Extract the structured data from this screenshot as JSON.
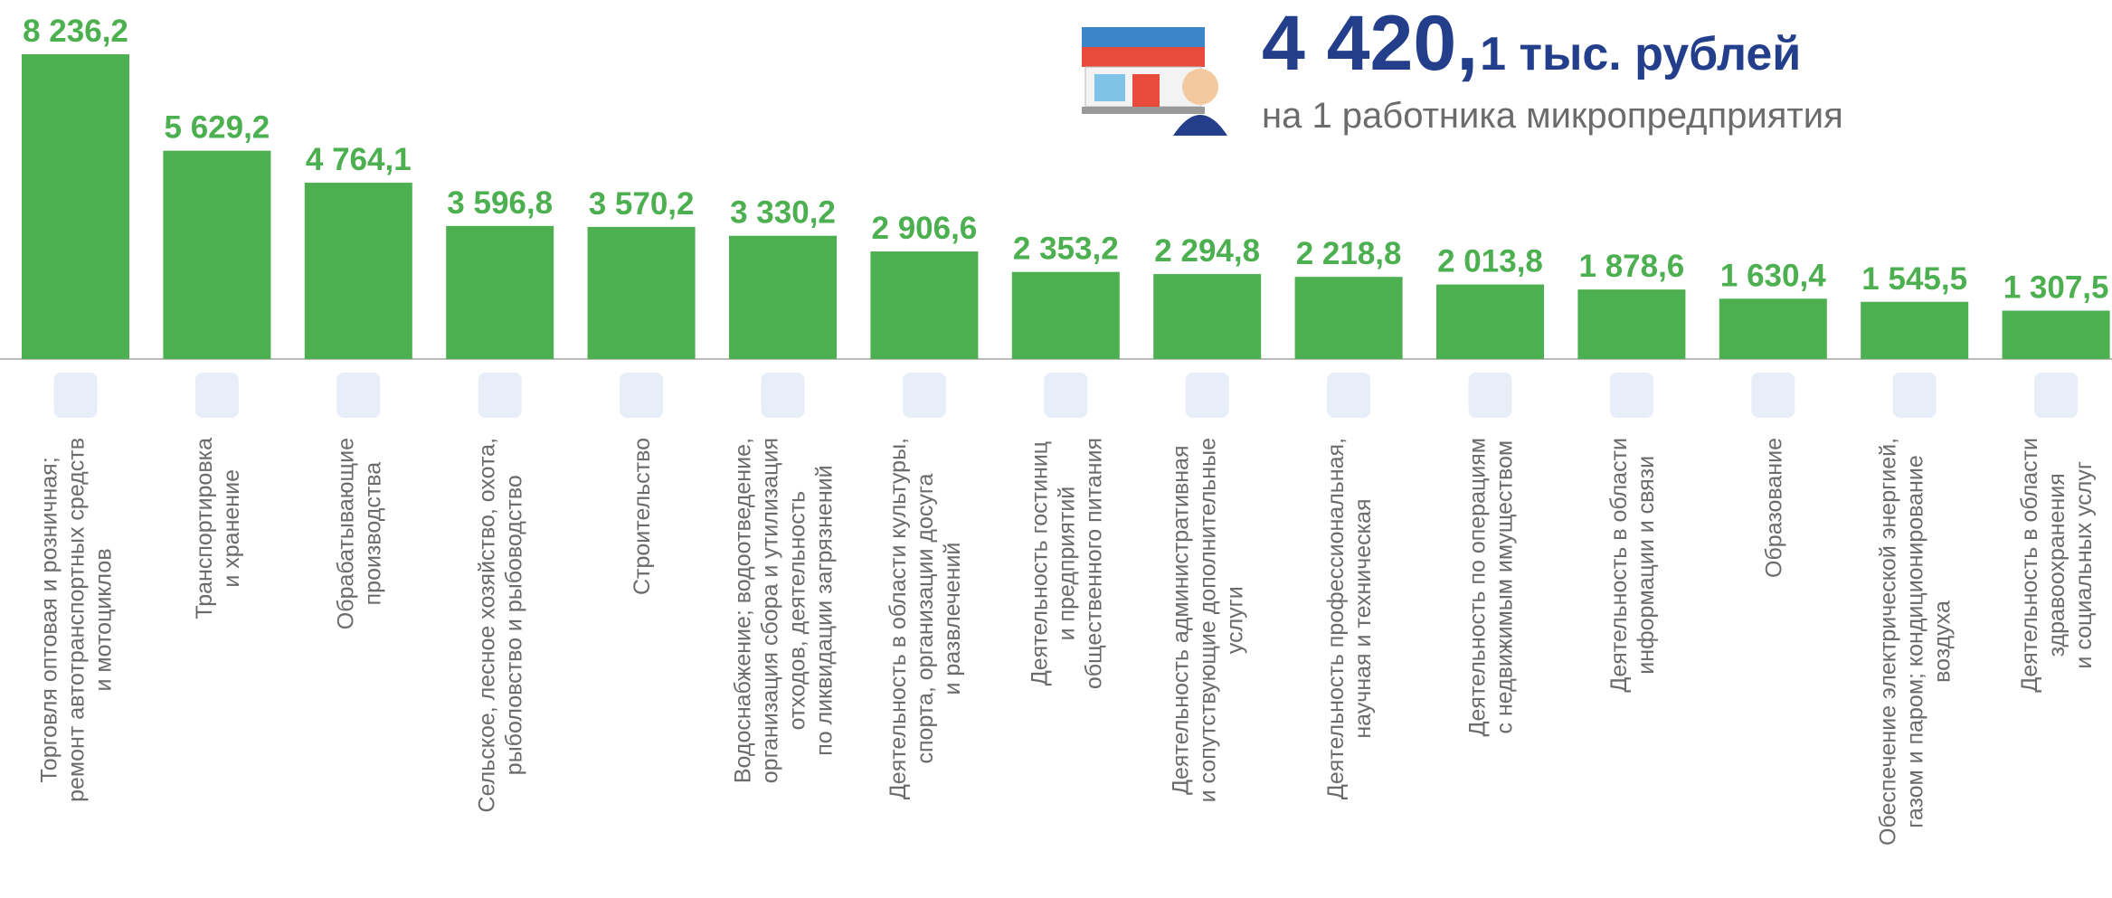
{
  "headline": {
    "value": "4 420,",
    "unit": "1 тыс. рублей",
    "subtitle": "на 1 работника микропредприятия"
  },
  "chart_data": {
    "type": "bar",
    "color": "#4caf50",
    "categories": [
      "Торговля оптовая и розничная;\nремонт автотранспортных средств\nи мотоциклов",
      "Транспортировка\nи хранение",
      "Обрабатывающие\nпроизводства",
      "Сельское, лесное хозяйство, охота,\nрыболовство и рыбоводство",
      "Строительство",
      "Водоснабжение; водоотведение,\nорганизация сбора и утилизация\nотходов, деятельность\nпо ликвидации загрязнений",
      "Деятельность в области культуры,\nспорта, организации досуга\nи развлечений",
      "Деятельность гостиниц\nи предприятий\nобщественного питания",
      "Деятельность административная\nи сопутствующие дополнительные\nуслуги",
      "Деятельность профессиональная,\nнаучная и техническая",
      "Деятельность по операциям\nс недвижимым имуществом",
      "Деятельность в области\nинформации и связи",
      "Образование",
      "Обеспечение электрической энергией,\nгазом и паром; кондиционирование\nвоздуха",
      "Деятельность в области\nздравоохранения\nи социальных услуг"
    ],
    "values": [
      8236.2,
      5629.2,
      4764.1,
      3596.8,
      3570.2,
      3330.2,
      2906.6,
      2353.2,
      2294.8,
      2218.8,
      2013.8,
      1878.6,
      1630.4,
      1545.5,
      1307.5
    ],
    "value_labels": [
      "8 236,2",
      "5 629,2",
      "4 764,1",
      "3 596,8",
      "3 570,2",
      "3 330,2",
      "2 906,6",
      "2 353,2",
      "2 294,8",
      "2 218,8",
      "2 013,8",
      "1 878,6",
      "1 630,4",
      "1 545,5",
      "1 307,5"
    ]
  }
}
